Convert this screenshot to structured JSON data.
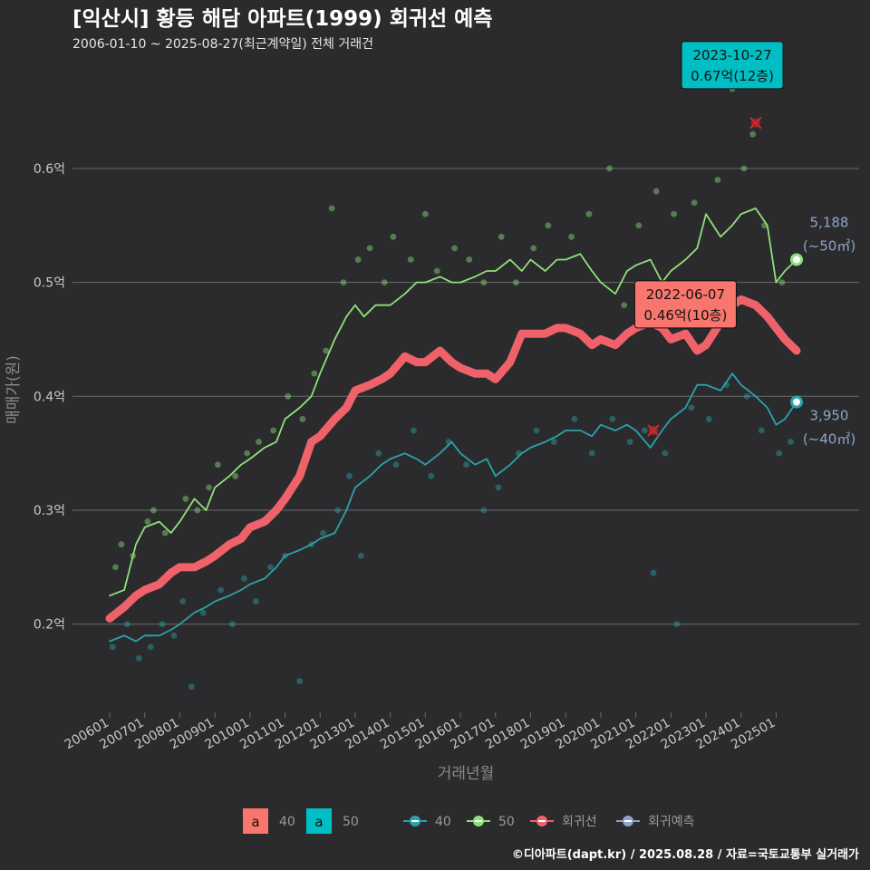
{
  "header": {
    "title": "[익산시] 황등 해담 아파트(1999) 회귀선 예측",
    "subtitle": "2006-01-10 ~ 2025-08-27(최근계약일) 전체 거래건"
  },
  "caption": "©디아파트(dapt.kr) / 2025.08.28 / 자료=국토교통부 실거래가",
  "colors": {
    "bg": "#2b2b2d",
    "grid": "#6a6a6a",
    "s40": "#2aa3ab",
    "s50": "#8fe07a",
    "reg": "#f0626a",
    "pred": "#8fa3c8",
    "box40": "#f8766d",
    "box50": "#00bfc4"
  },
  "chart_data": {
    "type": "line",
    "xlabel": "거래년월",
    "ylabel": "매매가(원)",
    "x_range": [
      "2006-01",
      "2025-08"
    ],
    "ylim": [
      0.12,
      0.7
    ],
    "y_ticks": [
      0.2,
      0.3,
      0.4,
      0.5,
      0.6
    ],
    "y_tick_labels": [
      "0.2억",
      "0.3억",
      "0.4억",
      "0.5억",
      "0.6억"
    ],
    "x_ticks": [
      "2006-01",
      "2007-01",
      "2008-01",
      "2009-01",
      "2010-01",
      "2011-01",
      "2012-01",
      "2013-01",
      "2014-01",
      "2015-01",
      "2016-01",
      "2017-01",
      "2018-01",
      "2019-01",
      "2020-01",
      "2021-01",
      "2022-01",
      "2023-01",
      "2024-01",
      "2025-01"
    ],
    "x_tick_labels": [
      "200601",
      "200701",
      "200801",
      "200901",
      "201001",
      "201101",
      "201201",
      "201301",
      "201401",
      "201501",
      "201601",
      "201701",
      "201801",
      "201901",
      "202001",
      "202101",
      "202201",
      "202301",
      "202401",
      "202501"
    ],
    "grid": true,
    "legend": {
      "position": "bottom",
      "box_items": [
        {
          "glyph": "a",
          "label": "40",
          "color": "#f8766d"
        },
        {
          "glyph": "a",
          "label": "50",
          "color": "#00bfc4"
        }
      ],
      "line_items": [
        {
          "label": "40",
          "color": "#2aa3ab"
        },
        {
          "label": "50",
          "color": "#8fe07a"
        },
        {
          "label": "회귀선",
          "color": "#f0626a"
        },
        {
          "label": "회귀예측",
          "color": "#8fa3c8"
        }
      ]
    },
    "series": [
      {
        "name": "50",
        "color": "#8fe07a",
        "points": [
          [
            "2006-01",
            0.225
          ],
          [
            "2006-06",
            0.23
          ],
          [
            "2006-10",
            0.27
          ],
          [
            "2007-01",
            0.285
          ],
          [
            "2007-06",
            0.29
          ],
          [
            "2007-10",
            0.28
          ],
          [
            "2008-01",
            0.29
          ],
          [
            "2008-06",
            0.31
          ],
          [
            "2008-10",
            0.3
          ],
          [
            "2009-01",
            0.32
          ],
          [
            "2009-06",
            0.33
          ],
          [
            "2009-10",
            0.34
          ],
          [
            "2010-01",
            0.345
          ],
          [
            "2010-06",
            0.355
          ],
          [
            "2010-10",
            0.36
          ],
          [
            "2011-01",
            0.38
          ],
          [
            "2011-06",
            0.39
          ],
          [
            "2011-10",
            0.4
          ],
          [
            "2012-01",
            0.42
          ],
          [
            "2012-06",
            0.45
          ],
          [
            "2012-10",
            0.47
          ],
          [
            "2013-01",
            0.48
          ],
          [
            "2013-04",
            0.47
          ],
          [
            "2013-08",
            0.48
          ],
          [
            "2014-01",
            0.48
          ],
          [
            "2014-06",
            0.49
          ],
          [
            "2014-10",
            0.5
          ],
          [
            "2015-01",
            0.5
          ],
          [
            "2015-06",
            0.505
          ],
          [
            "2015-10",
            0.5
          ],
          [
            "2016-01",
            0.5
          ],
          [
            "2016-06",
            0.505
          ],
          [
            "2016-10",
            0.51
          ],
          [
            "2017-01",
            0.51
          ],
          [
            "2017-06",
            0.52
          ],
          [
            "2017-10",
            0.51
          ],
          [
            "2018-01",
            0.52
          ],
          [
            "2018-06",
            0.51
          ],
          [
            "2018-10",
            0.52
          ],
          [
            "2019-01",
            0.52
          ],
          [
            "2019-06",
            0.525
          ],
          [
            "2019-10",
            0.51
          ],
          [
            "2020-01",
            0.5
          ],
          [
            "2020-06",
            0.49
          ],
          [
            "2020-10",
            0.51
          ],
          [
            "2021-01",
            0.515
          ],
          [
            "2021-06",
            0.52
          ],
          [
            "2021-10",
            0.5
          ],
          [
            "2022-01",
            0.51
          ],
          [
            "2022-06",
            0.52
          ],
          [
            "2022-10",
            0.53
          ],
          [
            "2023-01",
            0.56
          ],
          [
            "2023-06",
            0.54
          ],
          [
            "2023-10",
            0.55
          ],
          [
            "2024-01",
            0.56
          ],
          [
            "2024-06",
            0.565
          ],
          [
            "2024-10",
            0.55
          ],
          [
            "2025-01",
            0.5
          ],
          [
            "2025-04",
            0.51
          ],
          [
            "2025-08",
            0.52
          ]
        ],
        "end_value": 0.52
      },
      {
        "name": "40",
        "color": "#2aa3ab",
        "points": [
          [
            "2006-01",
            0.185
          ],
          [
            "2006-06",
            0.19
          ],
          [
            "2006-10",
            0.185
          ],
          [
            "2007-01",
            0.19
          ],
          [
            "2007-06",
            0.19
          ],
          [
            "2007-10",
            0.195
          ],
          [
            "2008-01",
            0.2
          ],
          [
            "2008-06",
            0.21
          ],
          [
            "2008-10",
            0.215
          ],
          [
            "2009-01",
            0.22
          ],
          [
            "2009-06",
            0.225
          ],
          [
            "2009-10",
            0.23
          ],
          [
            "2010-01",
            0.235
          ],
          [
            "2010-06",
            0.24
          ],
          [
            "2010-10",
            0.25
          ],
          [
            "2011-01",
            0.26
          ],
          [
            "2011-06",
            0.265
          ],
          [
            "2011-10",
            0.27
          ],
          [
            "2012-01",
            0.275
          ],
          [
            "2012-06",
            0.28
          ],
          [
            "2012-10",
            0.3
          ],
          [
            "2013-01",
            0.32
          ],
          [
            "2013-06",
            0.33
          ],
          [
            "2013-10",
            0.34
          ],
          [
            "2014-01",
            0.345
          ],
          [
            "2014-06",
            0.35
          ],
          [
            "2014-10",
            0.345
          ],
          [
            "2015-01",
            0.34
          ],
          [
            "2015-06",
            0.35
          ],
          [
            "2015-10",
            0.36
          ],
          [
            "2016-01",
            0.35
          ],
          [
            "2016-06",
            0.34
          ],
          [
            "2016-10",
            0.345
          ],
          [
            "2017-01",
            0.33
          ],
          [
            "2017-06",
            0.34
          ],
          [
            "2017-10",
            0.35
          ],
          [
            "2018-01",
            0.355
          ],
          [
            "2018-06",
            0.36
          ],
          [
            "2018-10",
            0.365
          ],
          [
            "2019-01",
            0.37
          ],
          [
            "2019-06",
            0.37
          ],
          [
            "2019-10",
            0.365
          ],
          [
            "2020-01",
            0.375
          ],
          [
            "2020-06",
            0.37
          ],
          [
            "2020-10",
            0.375
          ],
          [
            "2021-01",
            0.37
          ],
          [
            "2021-06",
            0.355
          ],
          [
            "2021-10",
            0.37
          ],
          [
            "2022-01",
            0.38
          ],
          [
            "2022-06",
            0.39
          ],
          [
            "2022-10",
            0.41
          ],
          [
            "2023-01",
            0.41
          ],
          [
            "2023-06",
            0.405
          ],
          [
            "2023-10",
            0.42
          ],
          [
            "2024-01",
            0.41
          ],
          [
            "2024-06",
            0.4
          ],
          [
            "2024-10",
            0.39
          ],
          [
            "2025-01",
            0.375
          ],
          [
            "2025-04",
            0.38
          ],
          [
            "2025-08",
            0.395
          ]
        ],
        "end_value": 0.395
      },
      {
        "name": "회귀선",
        "color": "#f0626a",
        "points": [
          [
            "2006-01",
            0.205
          ],
          [
            "2006-06",
            0.215
          ],
          [
            "2006-10",
            0.225
          ],
          [
            "2007-01",
            0.23
          ],
          [
            "2007-06",
            0.235
          ],
          [
            "2007-10",
            0.245
          ],
          [
            "2008-01",
            0.25
          ],
          [
            "2008-06",
            0.25
          ],
          [
            "2008-10",
            0.255
          ],
          [
            "2009-01",
            0.26
          ],
          [
            "2009-06",
            0.27
          ],
          [
            "2009-10",
            0.275
          ],
          [
            "2010-01",
            0.285
          ],
          [
            "2010-06",
            0.29
          ],
          [
            "2010-10",
            0.3
          ],
          [
            "2011-01",
            0.31
          ],
          [
            "2011-06",
            0.33
          ],
          [
            "2011-10",
            0.36
          ],
          [
            "2012-01",
            0.365
          ],
          [
            "2012-06",
            0.38
          ],
          [
            "2012-10",
            0.39
          ],
          [
            "2013-01",
            0.405
          ],
          [
            "2013-06",
            0.41
          ],
          [
            "2013-10",
            0.415
          ],
          [
            "2014-01",
            0.42
          ],
          [
            "2014-06",
            0.435
          ],
          [
            "2014-10",
            0.43
          ],
          [
            "2015-01",
            0.43
          ],
          [
            "2015-06",
            0.44
          ],
          [
            "2015-10",
            0.43
          ],
          [
            "2016-01",
            0.425
          ],
          [
            "2016-06",
            0.42
          ],
          [
            "2016-10",
            0.42
          ],
          [
            "2017-01",
            0.415
          ],
          [
            "2017-06",
            0.43
          ],
          [
            "2017-10",
            0.455
          ],
          [
            "2018-01",
            0.455
          ],
          [
            "2018-06",
            0.455
          ],
          [
            "2018-10",
            0.46
          ],
          [
            "2019-01",
            0.46
          ],
          [
            "2019-06",
            0.455
          ],
          [
            "2019-10",
            0.445
          ],
          [
            "2020-01",
            0.45
          ],
          [
            "2020-06",
            0.445
          ],
          [
            "2020-10",
            0.455
          ],
          [
            "2021-01",
            0.46
          ],
          [
            "2021-06",
            0.465
          ],
          [
            "2021-10",
            0.46
          ],
          [
            "2022-01",
            0.45
          ],
          [
            "2022-06",
            0.455
          ],
          [
            "2022-10",
            0.44
          ],
          [
            "2023-01",
            0.445
          ],
          [
            "2023-06",
            0.465
          ],
          [
            "2023-10",
            0.48
          ],
          [
            "2024-01",
            0.485
          ],
          [
            "2024-06",
            0.48
          ],
          [
            "2024-10",
            0.47
          ],
          [
            "2025-01",
            0.46
          ],
          [
            "2025-04",
            0.45
          ],
          [
            "2025-08",
            0.44
          ]
        ]
      }
    ],
    "scatter_50": [
      [
        "2006-03",
        0.25
      ],
      [
        "2006-05",
        0.27
      ],
      [
        "2006-09",
        0.26
      ],
      [
        "2007-02",
        0.29
      ],
      [
        "2007-04",
        0.3
      ],
      [
        "2007-08",
        0.28
      ],
      [
        "2008-03",
        0.31
      ],
      [
        "2008-07",
        0.3
      ],
      [
        "2008-11",
        0.32
      ],
      [
        "2009-02",
        0.34
      ],
      [
        "2009-08",
        0.33
      ],
      [
        "2009-12",
        0.35
      ],
      [
        "2010-04",
        0.36
      ],
      [
        "2010-09",
        0.37
      ],
      [
        "2011-02",
        0.4
      ],
      [
        "2011-07",
        0.38
      ],
      [
        "2011-11",
        0.42
      ],
      [
        "2012-03",
        0.44
      ],
      [
        "2012-05",
        0.565
      ],
      [
        "2012-09",
        0.5
      ],
      [
        "2013-02",
        0.52
      ],
      [
        "2013-06",
        0.53
      ],
      [
        "2013-11",
        0.5
      ],
      [
        "2014-02",
        0.54
      ],
      [
        "2014-08",
        0.52
      ],
      [
        "2015-01",
        0.56
      ],
      [
        "2015-05",
        0.51
      ],
      [
        "2015-11",
        0.53
      ],
      [
        "2016-04",
        0.52
      ],
      [
        "2016-09",
        0.5
      ],
      [
        "2017-03",
        0.54
      ],
      [
        "2017-08",
        0.5
      ],
      [
        "2018-02",
        0.53
      ],
      [
        "2018-07",
        0.55
      ],
      [
        "2019-03",
        0.54
      ],
      [
        "2019-09",
        0.56
      ],
      [
        "2020-04",
        0.6
      ],
      [
        "2020-09",
        0.48
      ],
      [
        "2021-02",
        0.55
      ],
      [
        "2021-08",
        0.58
      ],
      [
        "2022-02",
        0.56
      ],
      [
        "2022-09",
        0.57
      ],
      [
        "2023-05",
        0.59
      ],
      [
        "2023-10",
        0.67
      ],
      [
        "2024-02",
        0.6
      ],
      [
        "2024-05",
        0.63
      ],
      [
        "2024-09",
        0.55
      ],
      [
        "2025-03",
        0.5
      ]
    ],
    "scatter_40": [
      [
        "2006-02",
        0.18
      ],
      [
        "2006-07",
        0.2
      ],
      [
        "2006-11",
        0.17
      ],
      [
        "2007-03",
        0.18
      ],
      [
        "2007-07",
        0.2
      ],
      [
        "2007-11",
        0.19
      ],
      [
        "2008-02",
        0.22
      ],
      [
        "2008-05",
        0.145
      ],
      [
        "2008-09",
        0.21
      ],
      [
        "2009-03",
        0.23
      ],
      [
        "2009-07",
        0.2
      ],
      [
        "2009-11",
        0.24
      ],
      [
        "2010-03",
        0.22
      ],
      [
        "2010-08",
        0.25
      ],
      [
        "2011-01",
        0.26
      ],
      [
        "2011-06",
        0.15
      ],
      [
        "2011-10",
        0.27
      ],
      [
        "2012-02",
        0.28
      ],
      [
        "2012-07",
        0.3
      ],
      [
        "2012-11",
        0.33
      ],
      [
        "2013-03",
        0.26
      ],
      [
        "2013-09",
        0.35
      ],
      [
        "2014-03",
        0.34
      ],
      [
        "2014-09",
        0.37
      ],
      [
        "2015-03",
        0.33
      ],
      [
        "2015-09",
        0.36
      ],
      [
        "2016-03",
        0.34
      ],
      [
        "2016-09",
        0.3
      ],
      [
        "2017-02",
        0.32
      ],
      [
        "2017-09",
        0.35
      ],
      [
        "2018-03",
        0.37
      ],
      [
        "2018-09",
        0.36
      ],
      [
        "2019-04",
        0.38
      ],
      [
        "2019-10",
        0.35
      ],
      [
        "2020-05",
        0.38
      ],
      [
        "2020-11",
        0.36
      ],
      [
        "2021-04",
        0.37
      ],
      [
        "2021-07",
        0.245
      ],
      [
        "2021-11",
        0.35
      ],
      [
        "2022-03",
        0.2
      ],
      [
        "2022-08",
        0.39
      ],
      [
        "2023-02",
        0.38
      ],
      [
        "2023-08",
        0.41
      ],
      [
        "2024-03",
        0.4
      ],
      [
        "2024-08",
        0.37
      ],
      [
        "2025-02",
        0.35
      ],
      [
        "2025-06",
        0.36
      ]
    ],
    "excluded_points": [
      [
        "2021-07",
        0.37
      ],
      [
        "2024-06",
        0.64
      ]
    ],
    "callouts": [
      {
        "date_label": "2023-10-27",
        "price_label": "0.67억(12층)",
        "x": "2023-10",
        "y": 0.67,
        "color": "#00bfc4"
      },
      {
        "date_label": "2022-06-07",
        "price_label": "0.46억(10층)",
        "x": "2022-06",
        "y": 0.46,
        "color": "#f8766d"
      }
    ],
    "end_labels": [
      {
        "count": "5,188",
        "area": "(~50㎡)",
        "y": 0.52,
        "color": "#8fe07a"
      },
      {
        "count": "3,950",
        "area": "(~40㎡)",
        "y": 0.395,
        "color": "#2aa3ab"
      }
    ]
  }
}
